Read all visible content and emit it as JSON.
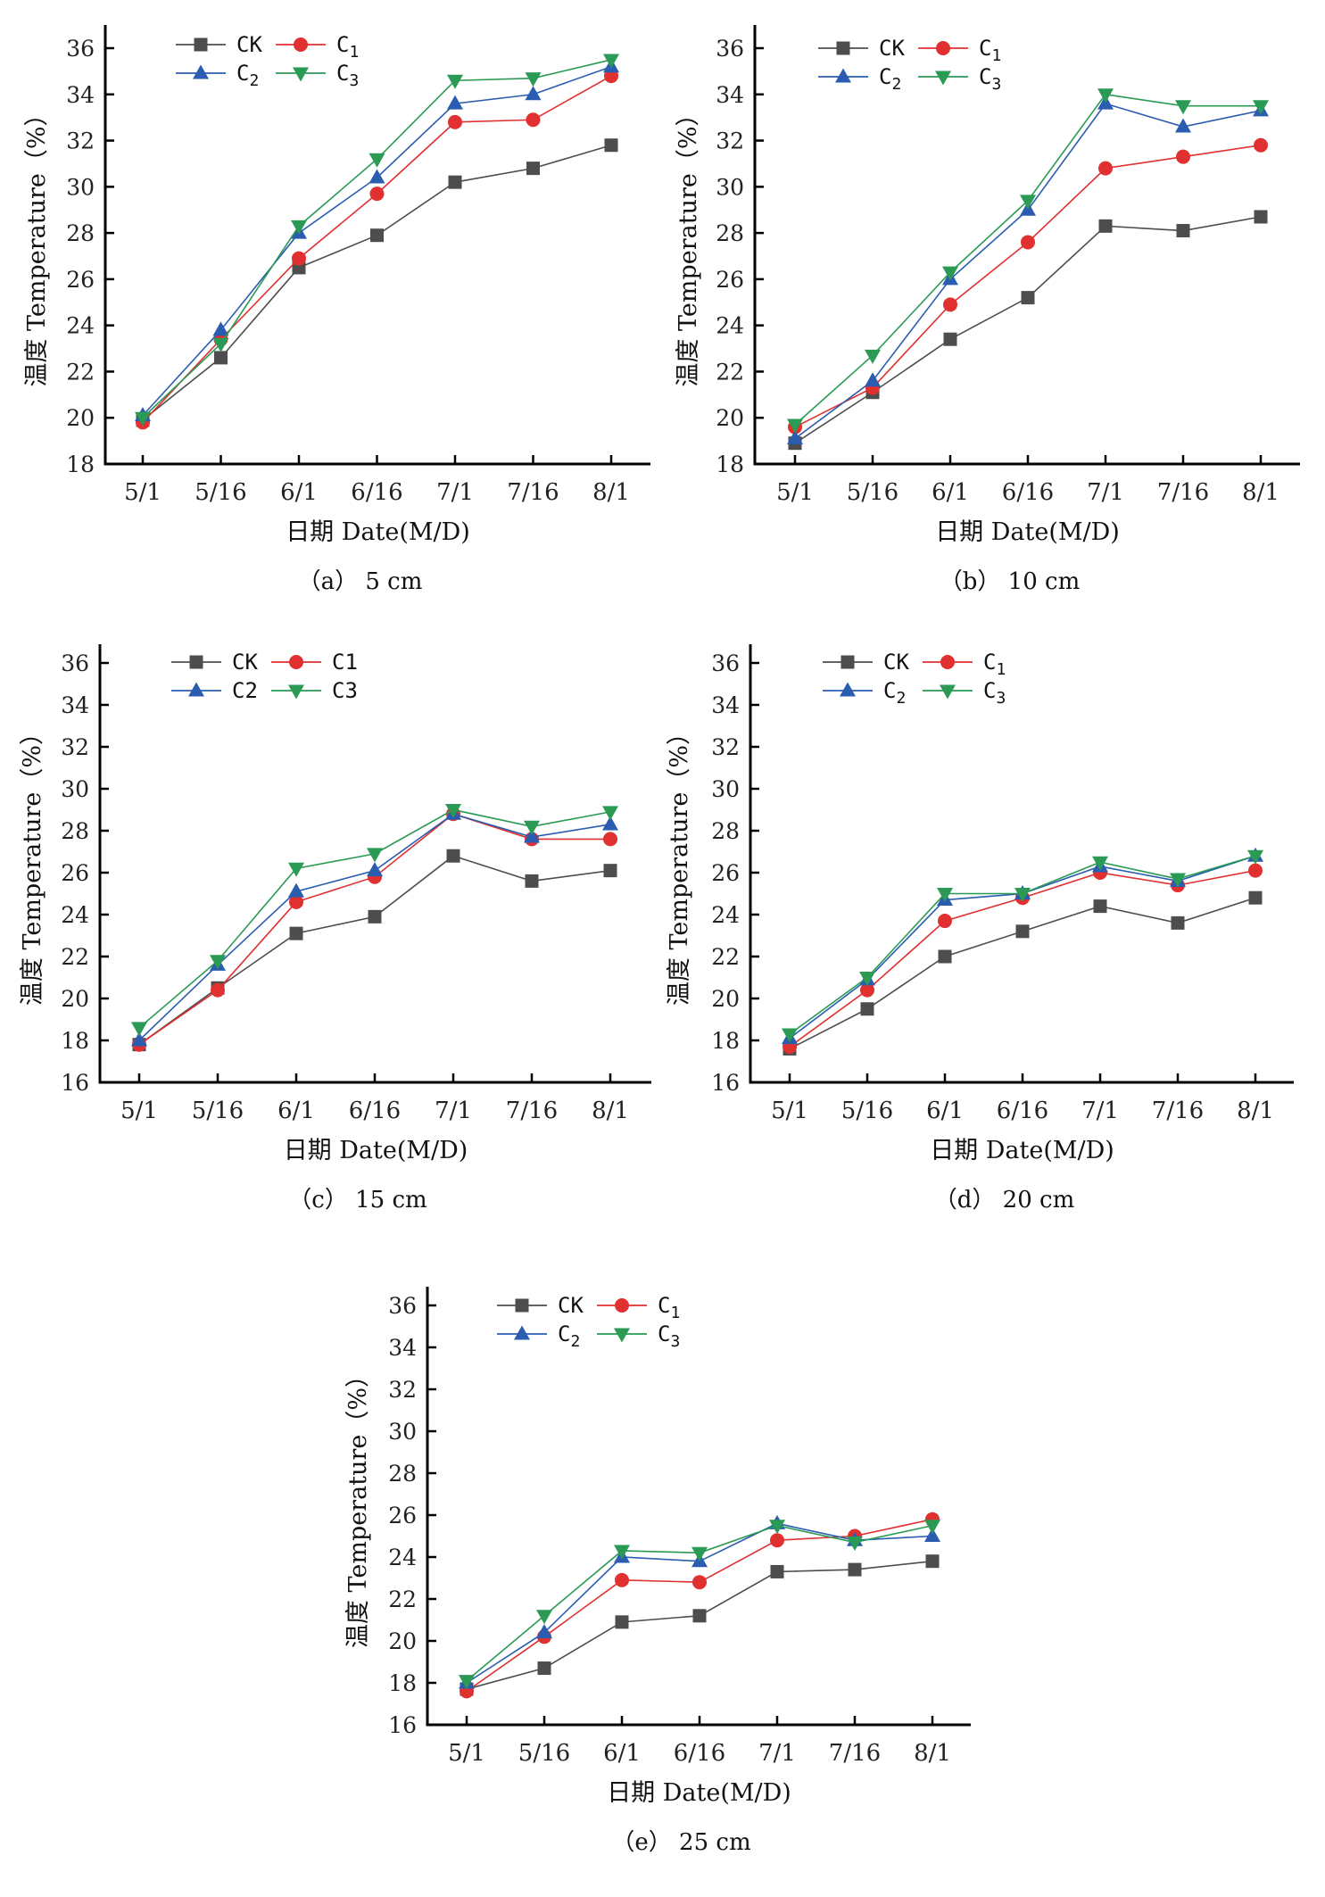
{
  "figure": {
    "x_axis_title": "日期 Date(M/D)",
    "y_axis_title": "温度 Temperature（%）"
  },
  "chart_data": [
    {
      "id": "a",
      "type": "line",
      "caption": "（a） 5 cm",
      "xlabel": "日期 Date(M/D)",
      "ylabel": "温度 Temperature（%）",
      "categories": [
        "5/1",
        "5/16",
        "6/1",
        "6/16",
        "7/1",
        "7/16",
        "8/1"
      ],
      "ylim": [
        18,
        36
      ],
      "yticks": [
        18,
        20,
        22,
        24,
        26,
        28,
        30,
        32,
        34,
        36
      ],
      "legend": {
        "placement": "top-left",
        "labels": [
          {
            "base": "CK",
            "sub": ""
          },
          {
            "base": "C",
            "sub": "1"
          },
          {
            "base": "C",
            "sub": "2"
          },
          {
            "base": "C",
            "sub": "3"
          }
        ]
      },
      "series": [
        {
          "name": "CK",
          "values": [
            19.9,
            22.6,
            26.5,
            27.9,
            30.2,
            30.8,
            31.8
          ]
        },
        {
          "name": "C1",
          "values": [
            19.8,
            23.4,
            26.9,
            29.7,
            32.8,
            32.9,
            34.8
          ]
        },
        {
          "name": "C2",
          "values": [
            20.1,
            23.8,
            28.0,
            30.4,
            33.6,
            34.0,
            35.2
          ]
        },
        {
          "name": "C3",
          "values": [
            20.0,
            23.2,
            28.3,
            31.2,
            34.6,
            34.7,
            35.5
          ]
        }
      ]
    },
    {
      "id": "b",
      "type": "line",
      "caption": "（b） 10 cm",
      "xlabel": "日期 Date(M/D)",
      "ylabel": "温度 Temperature（%）",
      "categories": [
        "5/1",
        "5/16",
        "6/1",
        "6/16",
        "7/1",
        "7/16",
        "8/1"
      ],
      "ylim": [
        18,
        36
      ],
      "yticks": [
        18,
        20,
        22,
        24,
        26,
        28,
        30,
        32,
        34,
        36
      ],
      "legend": {
        "placement": "top-left",
        "labels": [
          {
            "base": "CK",
            "sub": ""
          },
          {
            "base": "C",
            "sub": "1"
          },
          {
            "base": "C",
            "sub": "2"
          },
          {
            "base": "C",
            "sub": "3"
          }
        ]
      },
      "series": [
        {
          "name": "CK",
          "values": [
            18.9,
            21.1,
            23.4,
            25.2,
            28.3,
            28.1,
            28.7
          ]
        },
        {
          "name": "C1",
          "values": [
            19.6,
            21.3,
            24.9,
            27.6,
            30.8,
            31.3,
            31.8
          ]
        },
        {
          "name": "C2",
          "values": [
            19.1,
            21.6,
            26.0,
            29.0,
            33.6,
            32.6,
            33.3
          ]
        },
        {
          "name": "C3",
          "values": [
            19.7,
            22.7,
            26.3,
            29.4,
            34.0,
            33.5,
            33.5
          ]
        }
      ]
    },
    {
      "id": "c",
      "type": "line",
      "caption": "（c） 15 cm",
      "xlabel": "日期 Date(M/D)",
      "ylabel": "温度 Temperature（%）",
      "categories": [
        "5/1",
        "5/16",
        "6/1",
        "6/16",
        "7/1",
        "7/16",
        "8/1"
      ],
      "ylim": [
        16,
        36
      ],
      "yticks": [
        16,
        18,
        20,
        22,
        24,
        26,
        28,
        30,
        32,
        34,
        36
      ],
      "legend": {
        "placement": "top-left",
        "labels": [
          {
            "base": "CK",
            "sub": ""
          },
          {
            "base": "C1",
            "sub": ""
          },
          {
            "base": "C2",
            "sub": ""
          },
          {
            "base": "C3",
            "sub": ""
          }
        ]
      },
      "series": [
        {
          "name": "CK",
          "values": [
            17.8,
            20.5,
            23.1,
            23.9,
            26.8,
            25.6,
            26.1
          ]
        },
        {
          "name": "C1",
          "values": [
            17.8,
            20.4,
            24.6,
            25.8,
            28.8,
            27.6,
            27.6
          ]
        },
        {
          "name": "C2",
          "values": [
            18.0,
            21.6,
            25.1,
            26.1,
            28.8,
            27.7,
            28.3
          ]
        },
        {
          "name": "C3",
          "values": [
            18.6,
            21.8,
            26.2,
            26.9,
            29.0,
            28.2,
            28.9
          ]
        }
      ]
    },
    {
      "id": "d",
      "type": "line",
      "caption": "（d） 20 cm",
      "xlabel": "日期 Date(M/D)",
      "ylabel": "温度 Temperature（%）",
      "categories": [
        "5/1",
        "5/16",
        "6/1",
        "6/16",
        "7/1",
        "7/16",
        "8/1"
      ],
      "ylim": [
        16,
        36
      ],
      "yticks": [
        16,
        18,
        20,
        22,
        24,
        26,
        28,
        30,
        32,
        34,
        36
      ],
      "legend": {
        "placement": "top-left",
        "labels": [
          {
            "base": "CK",
            "sub": ""
          },
          {
            "base": "C",
            "sub": "1"
          },
          {
            "base": "C",
            "sub": "2"
          },
          {
            "base": "C",
            "sub": "3"
          }
        ]
      },
      "series": [
        {
          "name": "CK",
          "values": [
            17.6,
            19.5,
            22.0,
            23.2,
            24.4,
            23.6,
            24.8
          ]
        },
        {
          "name": "C1",
          "values": [
            17.7,
            20.4,
            23.7,
            24.8,
            26.0,
            25.4,
            26.1
          ]
        },
        {
          "name": "C2",
          "values": [
            18.1,
            20.9,
            24.7,
            25.0,
            26.3,
            25.6,
            26.8
          ]
        },
        {
          "name": "C3",
          "values": [
            18.3,
            21.0,
            25.0,
            25.0,
            26.5,
            25.7,
            26.8
          ]
        }
      ]
    },
    {
      "id": "e",
      "type": "line",
      "caption": "（e） 25 cm",
      "xlabel": "日期 Date(M/D)",
      "ylabel": "温度 Temperature（%）",
      "categories": [
        "5/1",
        "5/16",
        "6/1",
        "6/16",
        "7/1",
        "7/16",
        "8/1"
      ],
      "ylim": [
        16,
        36
      ],
      "yticks": [
        16,
        18,
        20,
        22,
        24,
        26,
        28,
        30,
        32,
        34,
        36
      ],
      "legend": {
        "placement": "top-left",
        "labels": [
          {
            "base": "CK",
            "sub": ""
          },
          {
            "base": "C",
            "sub": "1"
          },
          {
            "base": "C",
            "sub": "2"
          },
          {
            "base": "C",
            "sub": "3"
          }
        ]
      },
      "series": [
        {
          "name": "CK",
          "values": [
            17.7,
            18.7,
            20.9,
            21.2,
            23.3,
            23.4,
            23.8
          ]
        },
        {
          "name": "C1",
          "values": [
            17.6,
            20.2,
            22.9,
            22.8,
            24.8,
            25.0,
            25.8
          ]
        },
        {
          "name": "C2",
          "values": [
            18.0,
            20.4,
            24.0,
            23.8,
            25.6,
            24.8,
            25.0
          ]
        },
        {
          "name": "C3",
          "values": [
            18.1,
            21.2,
            24.3,
            24.2,
            25.5,
            24.7,
            25.5
          ]
        }
      ]
    }
  ],
  "series_style": {
    "CK": {
      "color": "#4d4d4d",
      "marker": "square"
    },
    "C1": {
      "color": "#e03030",
      "marker": "circle"
    },
    "C2": {
      "color": "#2a5db0",
      "marker": "triangle-up"
    },
    "C3": {
      "color": "#2a9a55",
      "marker": "triangle-down"
    }
  }
}
